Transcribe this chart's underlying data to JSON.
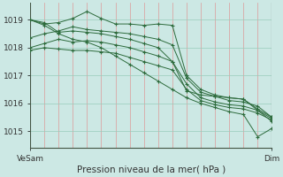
{
  "background_color": "#cce8e4",
  "plot_bg_color": "#cce8e4",
  "grid_color": "#99ccbb",
  "line_color": "#2d6b3c",
  "ylabel": "Pression niveau de la mer( hPa )",
  "x_start_label": "VeSam",
  "x_end_label": "Dim",
  "ylim": [
    1014.4,
    1019.6
  ],
  "yticks": [
    1015,
    1016,
    1017,
    1018,
    1019
  ],
  "n_vgrid": 17,
  "series": [
    [
      1019.0,
      1018.85,
      1018.9,
      1019.05,
      1019.3,
      1019.05,
      1018.85,
      1018.85,
      1018.8,
      1018.85,
      1018.8,
      1017.0,
      1016.5,
      1016.3,
      1016.2,
      1016.15,
      1015.8,
      1015.5
    ],
    [
      1018.35,
      1018.5,
      1018.6,
      1018.75,
      1018.65,
      1018.6,
      1018.55,
      1018.5,
      1018.4,
      1018.3,
      1018.1,
      1016.9,
      1016.4,
      1016.25,
      1016.1,
      1016.05,
      1015.9,
      1015.5
    ],
    [
      1018.0,
      1018.15,
      1018.3,
      1018.2,
      1018.25,
      1018.2,
      1018.1,
      1018.0,
      1017.85,
      1017.7,
      1017.5,
      1016.7,
      1016.2,
      1016.05,
      1015.95,
      1015.9,
      1015.75,
      1015.45
    ],
    [
      1017.9,
      1018.0,
      1017.95,
      1017.9,
      1017.9,
      1017.85,
      1017.8,
      1017.65,
      1017.5,
      1017.35,
      1017.2,
      1016.5,
      1016.1,
      1015.95,
      1015.85,
      1015.8,
      1015.65,
      1015.4
    ],
    [
      1019.0,
      1018.9,
      1018.55,
      1018.6,
      1018.55,
      1018.5,
      1018.4,
      1018.3,
      1018.15,
      1018.0,
      1017.5,
      1016.45,
      1016.3,
      1016.25,
      1016.2,
      1016.15,
      1015.75,
      1015.35
    ],
    [
      1019.0,
      1018.8,
      1018.5,
      1018.3,
      1018.2,
      1018.0,
      1017.7,
      1017.4,
      1017.1,
      1016.8,
      1016.5,
      1016.2,
      1016.0,
      1015.85,
      1015.7,
      1015.6,
      1014.8,
      1015.1
    ]
  ]
}
